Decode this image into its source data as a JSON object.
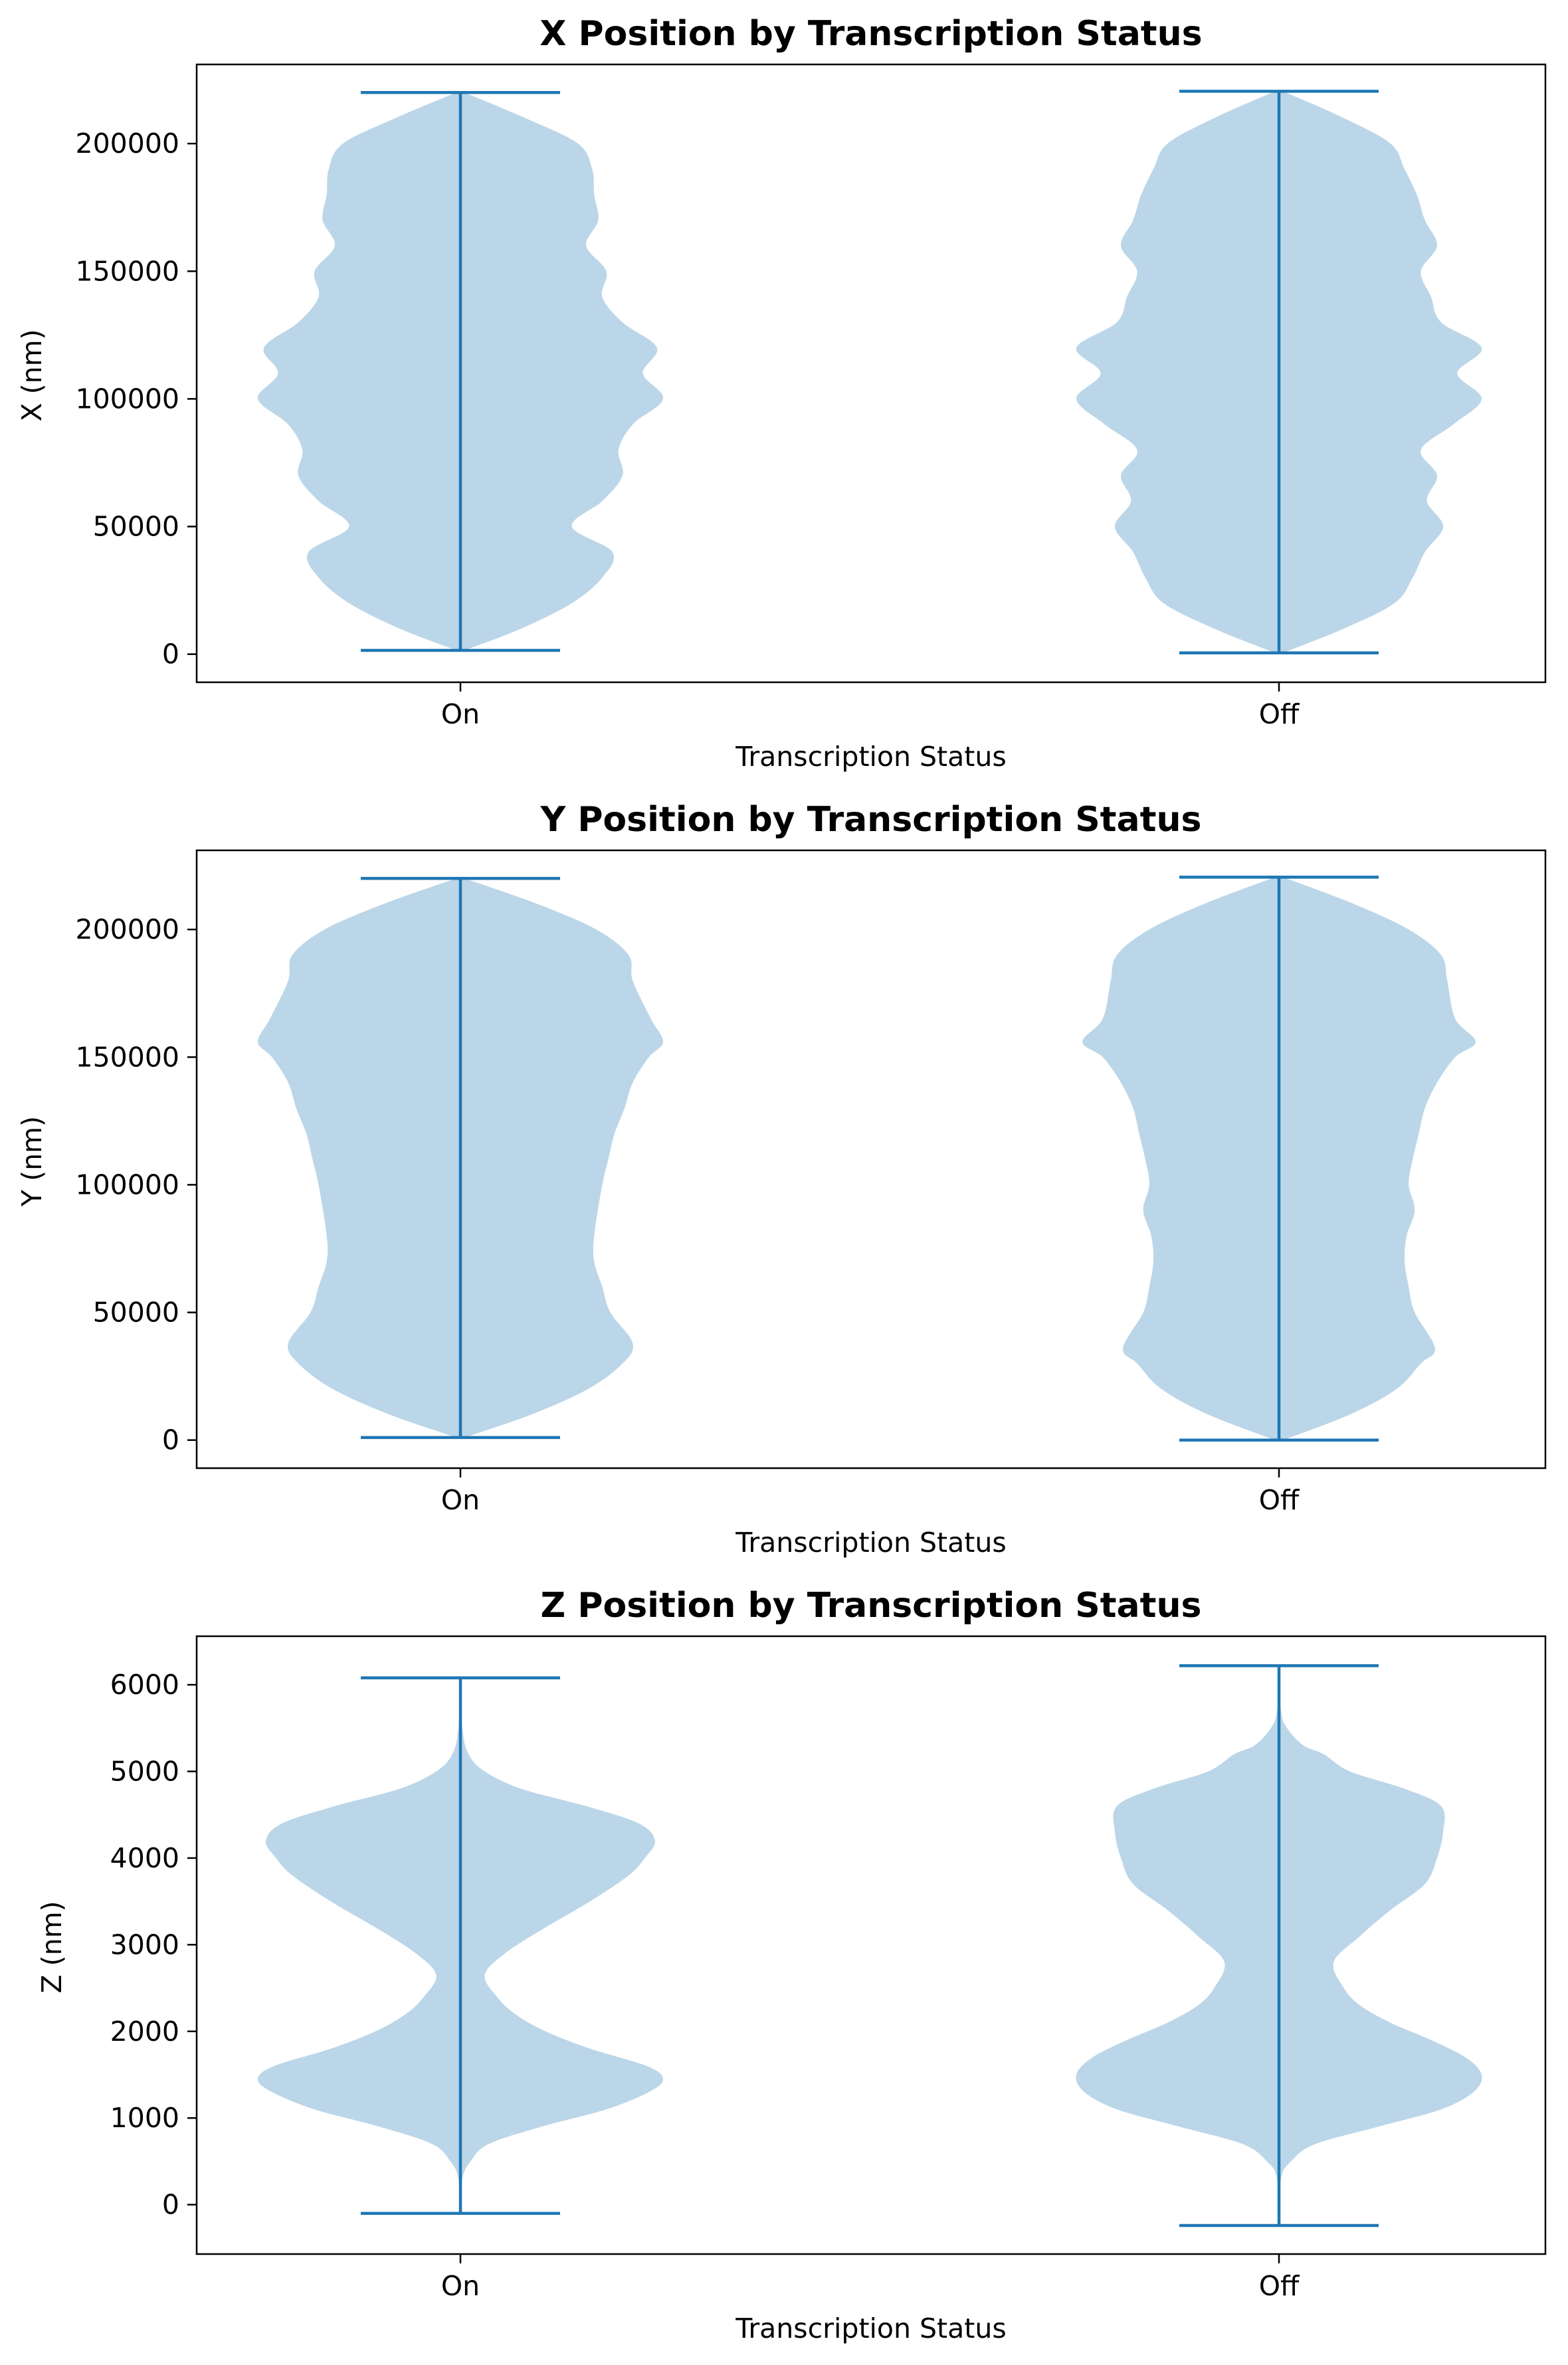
{
  "chart_data": [
    {
      "type": "violin",
      "title": "X Position by Transcription Status",
      "xlabel": "Transcription Status",
      "ylabel": "X (nm)",
      "categories": [
        "On",
        "Off"
      ],
      "ylim": [
        -11000,
        231000
      ],
      "yticks": [
        0,
        50000,
        100000,
        150000,
        200000
      ],
      "series_color": "#1f77b4",
      "violins": [
        {
          "category": "On",
          "min": 1500,
          "max": 220000,
          "density": [
            [
              1500,
              0.02
            ],
            [
              10000,
              0.3
            ],
            [
              20000,
              0.55
            ],
            [
              30000,
              0.7
            ],
            [
              40000,
              0.75
            ],
            [
              50000,
              0.55
            ],
            [
              60000,
              0.7
            ],
            [
              70000,
              0.8
            ],
            [
              80000,
              0.78
            ],
            [
              90000,
              0.85
            ],
            [
              100000,
              1.0
            ],
            [
              110000,
              0.9
            ],
            [
              120000,
              0.97
            ],
            [
              130000,
              0.8
            ],
            [
              140000,
              0.7
            ],
            [
              150000,
              0.72
            ],
            [
              160000,
              0.62
            ],
            [
              170000,
              0.68
            ],
            [
              180000,
              0.66
            ],
            [
              190000,
              0.65
            ],
            [
              200000,
              0.58
            ],
            [
              210000,
              0.32
            ],
            [
              220000,
              0.02
            ]
          ]
        },
        {
          "category": "Off",
          "min": 500,
          "max": 220500,
          "density": [
            [
              500,
              0.02
            ],
            [
              10000,
              0.32
            ],
            [
              20000,
              0.57
            ],
            [
              30000,
              0.66
            ],
            [
              40000,
              0.72
            ],
            [
              50000,
              0.81
            ],
            [
              60000,
              0.73
            ],
            [
              70000,
              0.78
            ],
            [
              80000,
              0.7
            ],
            [
              90000,
              0.86
            ],
            [
              100000,
              1.0
            ],
            [
              110000,
              0.88
            ],
            [
              120000,
              1.0
            ],
            [
              130000,
              0.8
            ],
            [
              140000,
              0.75
            ],
            [
              150000,
              0.7
            ],
            [
              160000,
              0.78
            ],
            [
              170000,
              0.72
            ],
            [
              180000,
              0.68
            ],
            [
              190000,
              0.62
            ],
            [
              200000,
              0.55
            ],
            [
              210000,
              0.32
            ],
            [
              220500,
              0.02
            ]
          ]
        }
      ]
    },
    {
      "type": "violin",
      "title": "Y Position by Transcription Status",
      "xlabel": "Transcription Status",
      "ylabel": "Y (nm)",
      "categories": [
        "On",
        "Off"
      ],
      "ylim": [
        -11000,
        231000
      ],
      "yticks": [
        0,
        50000,
        100000,
        150000,
        200000
      ],
      "series_color": "#1f77b4",
      "violins": [
        {
          "category": "On",
          "min": 1000,
          "max": 220000,
          "density": [
            [
              1000,
              0.02
            ],
            [
              10000,
              0.35
            ],
            [
              20000,
              0.63
            ],
            [
              30000,
              0.8
            ],
            [
              38000,
              0.85
            ],
            [
              50000,
              0.74
            ],
            [
              60000,
              0.7
            ],
            [
              70000,
              0.66
            ],
            [
              80000,
              0.66
            ],
            [
              100000,
              0.7
            ],
            [
              110000,
              0.73
            ],
            [
              120000,
              0.76
            ],
            [
              130000,
              0.81
            ],
            [
              140000,
              0.85
            ],
            [
              150000,
              0.93
            ],
            [
              156000,
              1.0
            ],
            [
              165000,
              0.94
            ],
            [
              180000,
              0.85
            ],
            [
              190000,
              0.83
            ],
            [
              200000,
              0.67
            ],
            [
              210000,
              0.38
            ],
            [
              220000,
              0.02
            ]
          ]
        },
        {
          "category": "Off",
          "min": 0,
          "max": 220500,
          "density": [
            [
              0,
              0.02
            ],
            [
              10000,
              0.35
            ],
            [
              20000,
              0.58
            ],
            [
              30000,
              0.7
            ],
            [
              36000,
              0.77
            ],
            [
              50000,
              0.67
            ],
            [
              60000,
              0.64
            ],
            [
              70000,
              0.62
            ],
            [
              80000,
              0.63
            ],
            [
              90000,
              0.67
            ],
            [
              100000,
              0.64
            ],
            [
              110000,
              0.66
            ],
            [
              120000,
              0.69
            ],
            [
              130000,
              0.72
            ],
            [
              140000,
              0.78
            ],
            [
              150000,
              0.87
            ],
            [
              156000,
              0.97
            ],
            [
              165000,
              0.87
            ],
            [
              180000,
              0.83
            ],
            [
              190000,
              0.8
            ],
            [
              200000,
              0.64
            ],
            [
              210000,
              0.37
            ],
            [
              220500,
              0.02
            ]
          ]
        }
      ]
    },
    {
      "type": "violin",
      "title": "Z Position by Transcription Status",
      "xlabel": "Transcription Status",
      "ylabel": "Z (nm)",
      "categories": [
        "On",
        "Off"
      ],
      "ylim": [
        -570,
        6560
      ],
      "yticks": [
        0,
        1000,
        2000,
        3000,
        4000,
        5000,
        6000
      ],
      "series_color": "#1f77b4",
      "violins": [
        {
          "category": "On",
          "min": -100,
          "max": 6080,
          "density": [
            [
              -100,
              0.0
            ],
            [
              300,
              0.01
            ],
            [
              500,
              0.05
            ],
            [
              700,
              0.14
            ],
            [
              900,
              0.4
            ],
            [
              1100,
              0.72
            ],
            [
              1300,
              0.93
            ],
            [
              1450,
              1.0
            ],
            [
              1600,
              0.92
            ],
            [
              1800,
              0.64
            ],
            [
              2000,
              0.42
            ],
            [
              2200,
              0.27
            ],
            [
              2400,
              0.18
            ],
            [
              2650,
              0.12
            ],
            [
              2900,
              0.22
            ],
            [
              3200,
              0.42
            ],
            [
              3500,
              0.64
            ],
            [
              3800,
              0.83
            ],
            [
              4000,
              0.91
            ],
            [
              4200,
              0.96
            ],
            [
              4400,
              0.88
            ],
            [
              4600,
              0.62
            ],
            [
              4800,
              0.3
            ],
            [
              5000,
              0.12
            ],
            [
              5200,
              0.04
            ],
            [
              5500,
              0.01
            ],
            [
              6080,
              0.0
            ]
          ]
        },
        {
          "category": "Off",
          "min": -240,
          "max": 6220,
          "density": [
            [
              -240,
              0.0
            ],
            [
              300,
              0.01
            ],
            [
              500,
              0.06
            ],
            [
              700,
              0.18
            ],
            [
              900,
              0.49
            ],
            [
              1100,
              0.8
            ],
            [
              1300,
              0.96
            ],
            [
              1500,
              1.0
            ],
            [
              1700,
              0.92
            ],
            [
              1900,
              0.75
            ],
            [
              2100,
              0.55
            ],
            [
              2300,
              0.4
            ],
            [
              2500,
              0.32
            ],
            [
              2800,
              0.27
            ],
            [
              3100,
              0.4
            ],
            [
              3400,
              0.55
            ],
            [
              3700,
              0.72
            ],
            [
              4000,
              0.78
            ],
            [
              4300,
              0.81
            ],
            [
              4600,
              0.8
            ],
            [
              4800,
              0.62
            ],
            [
              5000,
              0.35
            ],
            [
              5200,
              0.22
            ],
            [
              5300,
              0.12
            ],
            [
              5500,
              0.04
            ],
            [
              5700,
              0.01
            ],
            [
              6220,
              0.0
            ]
          ]
        }
      ]
    }
  ]
}
